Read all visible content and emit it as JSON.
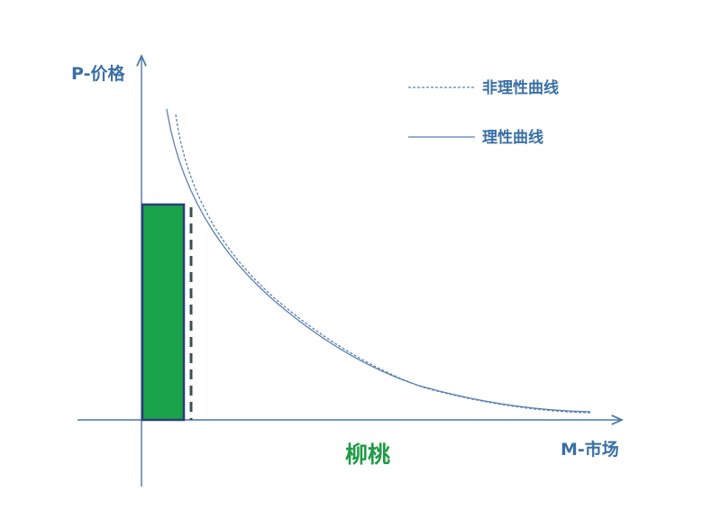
{
  "axes": {
    "y_label": "P-价格",
    "x_label": "M-市场"
  },
  "legend": {
    "items": [
      {
        "label": "非理性曲线",
        "style": "dashed"
      },
      {
        "label": "理性曲线",
        "style": "solid"
      }
    ]
  },
  "region": {
    "label": "柳桃"
  },
  "colors": {
    "axis": "#4a77a8",
    "text_blue": "#3a6fa5",
    "curve": "#5b82b1",
    "bar_fill": "#1aa34a",
    "bar_border": "#2b3e78",
    "dashed_marker": "#3b5056",
    "region_label": "#1f9b45"
  }
}
